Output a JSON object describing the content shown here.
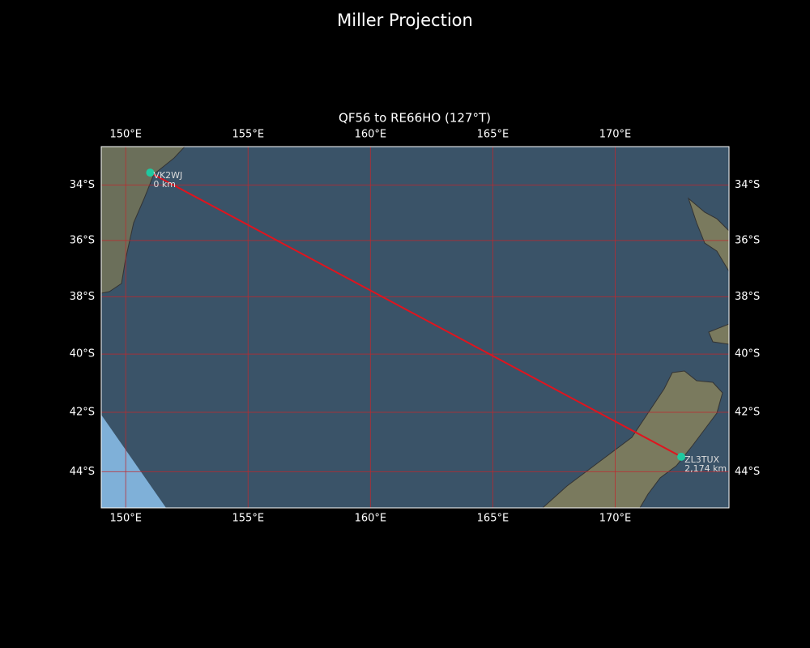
{
  "title": "Miller Projection",
  "map": {
    "subtitle": "QF56 to RE66HO (127°T)",
    "lon_range": [
      149.0,
      174.65
    ],
    "lat_range": [
      -32.6,
      -45.2
    ],
    "lon_ticks": [
      {
        "value": 150,
        "label": "150°E"
      },
      {
        "value": 155,
        "label": "155°E"
      },
      {
        "value": 160,
        "label": "160°E"
      },
      {
        "value": 165,
        "label": "165°E"
      },
      {
        "value": 170,
        "label": "170°E"
      }
    ],
    "lat_ticks": [
      {
        "value": -34,
        "label": "34°S"
      },
      {
        "value": -36,
        "label": "36°S"
      },
      {
        "value": -38,
        "label": "38°S"
      },
      {
        "value": -40,
        "label": "40°S"
      },
      {
        "value": -42,
        "label": "42°S"
      },
      {
        "value": -44,
        "label": "44°S"
      }
    ],
    "stations": [
      {
        "name": "VK2WJ",
        "distance": "0 km",
        "lon": 151.0,
        "lat": -33.55
      },
      {
        "name": "ZL3TUX",
        "distance": "2,174 km",
        "lon": 172.7,
        "lat": -43.5
      }
    ]
  }
}
